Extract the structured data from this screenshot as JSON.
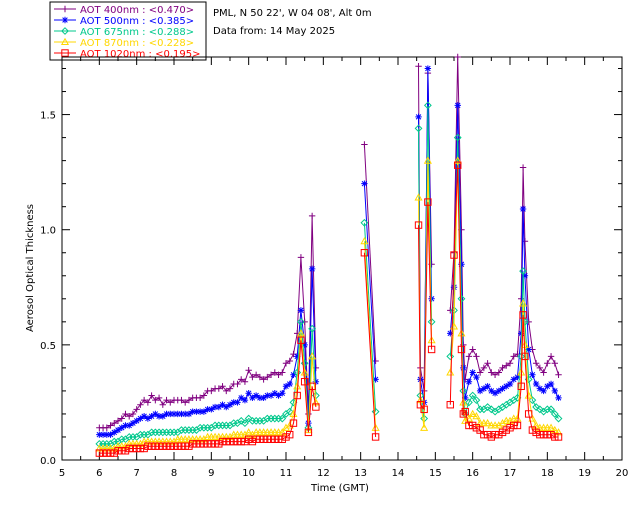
{
  "header": {
    "location": "PML, N 50 22', W 04 08', Alt 0m",
    "date_line": "Data from: 14 May 2025"
  },
  "chart_data": {
    "type": "line",
    "xlabel": "Time (GMT)",
    "ylabel": "Aerosol Optical Thickness",
    "xlim": [
      5,
      20
    ],
    "ylim": [
      0,
      1.75
    ],
    "xticks": [
      "5",
      "6",
      "7",
      "8",
      "9",
      "10",
      "11",
      "12",
      "13",
      "14",
      "15",
      "16",
      "17",
      "18",
      "19",
      "20"
    ],
    "yticks": [
      "0.0",
      "0.5",
      "1.0",
      "1.5"
    ],
    "legend_position": "top-left, outside plot",
    "series": [
      {
        "name": "AOT 400nm",
        "mean": "<0.470>",
        "legend": "AOT  400nm : <0.470>",
        "color": "#800080",
        "marker": "plus",
        "x": [
          6.0,
          6.1,
          6.2,
          6.3,
          6.4,
          6.5,
          6.6,
          6.7,
          6.8,
          6.9,
          7.0,
          7.1,
          7.2,
          7.3,
          7.4,
          7.5,
          7.6,
          7.7,
          7.8,
          7.9,
          8.0,
          8.1,
          8.2,
          8.3,
          8.4,
          8.5,
          8.6,
          8.7,
          8.8,
          8.9,
          9.0,
          9.1,
          9.2,
          9.3,
          9.4,
          9.5,
          9.6,
          9.7,
          9.8,
          9.9,
          10.0,
          10.1,
          10.2,
          10.3,
          10.4,
          10.5,
          10.6,
          10.7,
          10.8,
          10.9,
          11.0,
          11.1,
          11.2,
          11.3,
          11.4,
          11.5,
          11.6,
          11.7,
          11.8,
          null,
          13.1,
          13.4,
          null,
          14.55,
          14.6,
          14.7,
          14.8,
          14.9,
          null,
          15.4,
          15.5,
          15.6,
          15.7,
          15.75,
          15.8,
          15.9,
          16.0,
          16.1,
          16.2,
          16.3,
          16.4,
          16.5,
          16.6,
          16.7,
          16.8,
          16.9,
          17.0,
          17.1,
          17.2,
          17.3,
          17.35,
          17.4,
          17.5,
          17.6,
          17.7,
          17.8,
          17.9,
          18.0,
          18.1,
          18.2,
          18.3
        ],
        "y": [
          0.14,
          0.14,
          0.14,
          0.15,
          0.16,
          0.17,
          0.18,
          0.2,
          0.19,
          0.2,
          0.22,
          0.24,
          0.26,
          0.25,
          0.28,
          0.26,
          0.27,
          0.24,
          0.26,
          0.25,
          0.26,
          0.26,
          0.26,
          0.25,
          0.26,
          0.27,
          0.27,
          0.27,
          0.28,
          0.3,
          0.3,
          0.31,
          0.31,
          0.32,
          0.3,
          0.31,
          0.33,
          0.33,
          0.35,
          0.34,
          0.39,
          0.36,
          0.37,
          0.36,
          0.35,
          0.36,
          0.37,
          0.38,
          0.37,
          0.38,
          0.42,
          0.43,
          0.46,
          0.55,
          0.88,
          0.6,
          0.2,
          1.06,
          0.4,
          null,
          1.37,
          0.43,
          null,
          1.71,
          0.4,
          0.3,
          1.68,
          0.85,
          null,
          0.65,
          0.9,
          1.75,
          1.0,
          0.5,
          0.35,
          0.45,
          0.48,
          0.45,
          0.38,
          0.4,
          0.42,
          0.38,
          0.37,
          0.38,
          0.4,
          0.41,
          0.42,
          0.45,
          0.46,
          0.7,
          1.27,
          0.95,
          0.6,
          0.48,
          0.42,
          0.4,
          0.38,
          0.42,
          0.45,
          0.42,
          0.37
        ]
      },
      {
        "name": "AOT 500nm",
        "mean": "<0.385>",
        "legend": "AOT  500nm : <0.385>",
        "color": "#0000ff",
        "marker": "asterisk",
        "x": [
          6.0,
          6.1,
          6.2,
          6.3,
          6.4,
          6.5,
          6.6,
          6.7,
          6.8,
          6.9,
          7.0,
          7.1,
          7.2,
          7.3,
          7.4,
          7.5,
          7.6,
          7.7,
          7.8,
          7.9,
          8.0,
          8.1,
          8.2,
          8.3,
          8.4,
          8.5,
          8.6,
          8.7,
          8.8,
          8.9,
          9.0,
          9.1,
          9.2,
          9.3,
          9.4,
          9.5,
          9.6,
          9.7,
          9.8,
          9.9,
          10.0,
          10.1,
          10.2,
          10.3,
          10.4,
          10.5,
          10.6,
          10.7,
          10.8,
          10.9,
          11.0,
          11.1,
          11.2,
          11.3,
          11.4,
          11.5,
          11.6,
          11.7,
          11.8,
          null,
          13.1,
          13.4,
          null,
          14.55,
          14.6,
          14.7,
          14.8,
          14.9,
          null,
          15.4,
          15.5,
          15.6,
          15.7,
          15.75,
          15.8,
          15.9,
          16.0,
          16.1,
          16.2,
          16.3,
          16.4,
          16.5,
          16.6,
          16.7,
          16.8,
          16.9,
          17.0,
          17.1,
          17.2,
          17.3,
          17.35,
          17.4,
          17.5,
          17.6,
          17.7,
          17.8,
          17.9,
          18.0,
          18.1,
          18.2,
          18.3
        ],
        "y": [
          0.11,
          0.11,
          0.11,
          0.11,
          0.12,
          0.13,
          0.14,
          0.15,
          0.15,
          0.16,
          0.17,
          0.18,
          0.19,
          0.18,
          0.19,
          0.2,
          0.19,
          0.19,
          0.2,
          0.2,
          0.2,
          0.2,
          0.2,
          0.2,
          0.2,
          0.21,
          0.21,
          0.21,
          0.21,
          0.22,
          0.22,
          0.23,
          0.23,
          0.24,
          0.23,
          0.24,
          0.25,
          0.25,
          0.27,
          0.26,
          0.29,
          0.27,
          0.28,
          0.27,
          0.27,
          0.28,
          0.28,
          0.29,
          0.28,
          0.29,
          0.32,
          0.33,
          0.37,
          0.45,
          0.65,
          0.5,
          0.16,
          0.83,
          0.34,
          null,
          1.2,
          0.35,
          null,
          1.49,
          0.35,
          0.25,
          1.7,
          0.7,
          null,
          0.55,
          0.75,
          1.54,
          0.85,
          0.4,
          0.27,
          0.34,
          0.38,
          0.36,
          0.3,
          0.31,
          0.32,
          0.3,
          0.29,
          0.3,
          0.31,
          0.32,
          0.33,
          0.35,
          0.36,
          0.55,
          1.09,
          0.8,
          0.48,
          0.37,
          0.33,
          0.31,
          0.3,
          0.32,
          0.33,
          0.3,
          0.27
        ]
      },
      {
        "name": "AOT 675nm",
        "mean": "<0.288>",
        "legend": "AOT  675nm : <0.288>",
        "color": "#00c88c",
        "marker": "diamond",
        "x": [
          6.0,
          6.1,
          6.2,
          6.3,
          6.4,
          6.5,
          6.6,
          6.7,
          6.8,
          6.9,
          7.0,
          7.1,
          7.2,
          7.3,
          7.4,
          7.5,
          7.6,
          7.7,
          7.8,
          7.9,
          8.0,
          8.1,
          8.2,
          8.3,
          8.4,
          8.5,
          8.6,
          8.7,
          8.8,
          8.9,
          9.0,
          9.1,
          9.2,
          9.3,
          9.4,
          9.5,
          9.6,
          9.7,
          9.8,
          9.9,
          10.0,
          10.1,
          10.2,
          10.3,
          10.4,
          10.5,
          10.6,
          10.7,
          10.8,
          10.9,
          11.0,
          11.1,
          11.2,
          11.3,
          11.4,
          11.5,
          11.6,
          11.7,
          11.8,
          null,
          13.1,
          13.4,
          null,
          14.55,
          14.6,
          14.7,
          14.8,
          14.9,
          null,
          15.4,
          15.5,
          15.6,
          15.7,
          15.75,
          15.8,
          15.9,
          16.0,
          16.1,
          16.2,
          16.3,
          16.4,
          16.5,
          16.6,
          16.7,
          16.8,
          16.9,
          17.0,
          17.1,
          17.2,
          17.3,
          17.35,
          17.4,
          17.5,
          17.6,
          17.7,
          17.8,
          17.9,
          18.0,
          18.1,
          18.2,
          18.3
        ],
        "y": [
          0.07,
          0.07,
          0.07,
          0.07,
          0.08,
          0.08,
          0.09,
          0.09,
          0.1,
          0.1,
          0.1,
          0.11,
          0.11,
          0.11,
          0.12,
          0.12,
          0.12,
          0.12,
          0.12,
          0.12,
          0.12,
          0.12,
          0.13,
          0.13,
          0.13,
          0.13,
          0.13,
          0.14,
          0.14,
          0.14,
          0.14,
          0.15,
          0.15,
          0.15,
          0.15,
          0.15,
          0.16,
          0.16,
          0.17,
          0.16,
          0.18,
          0.17,
          0.17,
          0.17,
          0.17,
          0.18,
          0.18,
          0.18,
          0.18,
          0.18,
          0.2,
          0.21,
          0.25,
          0.38,
          0.6,
          0.42,
          0.14,
          0.57,
          0.28,
          null,
          1.03,
          0.21,
          null,
          1.44,
          0.28,
          0.18,
          1.54,
          0.6,
          null,
          0.45,
          0.65,
          1.4,
          0.7,
          0.3,
          0.2,
          0.25,
          0.28,
          0.26,
          0.22,
          0.22,
          0.23,
          0.22,
          0.21,
          0.22,
          0.23,
          0.24,
          0.25,
          0.26,
          0.27,
          0.45,
          0.82,
          0.6,
          0.35,
          0.26,
          0.23,
          0.22,
          0.21,
          0.22,
          0.22,
          0.2,
          0.18
        ]
      },
      {
        "name": "AOT 870nm",
        "mean": "<0.228>",
        "legend": "AOT  870nm : <0.228>",
        "color": "#ffd700",
        "marker": "triangle",
        "x": [
          6.0,
          6.1,
          6.2,
          6.3,
          6.4,
          6.5,
          6.6,
          6.7,
          6.8,
          6.9,
          7.0,
          7.1,
          7.2,
          7.3,
          7.4,
          7.5,
          7.6,
          7.7,
          7.8,
          7.9,
          8.0,
          8.1,
          8.2,
          8.3,
          8.4,
          8.5,
          8.6,
          8.7,
          8.8,
          8.9,
          9.0,
          9.1,
          9.2,
          9.3,
          9.4,
          9.5,
          9.6,
          9.7,
          9.8,
          9.9,
          10.0,
          10.1,
          10.2,
          10.3,
          10.4,
          10.5,
          10.6,
          10.7,
          10.8,
          10.9,
          11.0,
          11.1,
          11.2,
          11.3,
          11.4,
          11.5,
          11.6,
          11.7,
          11.8,
          null,
          13.1,
          13.4,
          null,
          14.55,
          14.6,
          14.7,
          14.8,
          14.9,
          null,
          15.4,
          15.5,
          15.6,
          15.7,
          15.75,
          15.8,
          15.9,
          16.0,
          16.1,
          16.2,
          16.3,
          16.4,
          16.5,
          16.6,
          16.7,
          16.8,
          16.9,
          17.0,
          17.1,
          17.2,
          17.3,
          17.35,
          17.4,
          17.5,
          17.6,
          17.7,
          17.8,
          17.9,
          18.0,
          18.1,
          18.2,
          18.3
        ],
        "y": [
          0.05,
          0.05,
          0.05,
          0.05,
          0.05,
          0.06,
          0.06,
          0.06,
          0.07,
          0.07,
          0.07,
          0.07,
          0.08,
          0.08,
          0.08,
          0.08,
          0.08,
          0.08,
          0.08,
          0.08,
          0.08,
          0.09,
          0.09,
          0.09,
          0.09,
          0.09,
          0.09,
          0.09,
          0.09,
          0.1,
          0.1,
          0.1,
          0.1,
          0.1,
          0.1,
          0.1,
          0.11,
          0.11,
          0.11,
          0.11,
          0.12,
          0.11,
          0.12,
          0.12,
          0.12,
          0.12,
          0.12,
          0.12,
          0.12,
          0.12,
          0.14,
          0.15,
          0.2,
          0.32,
          0.55,
          0.38,
          0.13,
          0.45,
          0.25,
          null,
          0.95,
          0.14,
          null,
          1.14,
          0.26,
          0.14,
          1.3,
          0.52,
          null,
          0.38,
          0.58,
          1.3,
          0.55,
          0.25,
          0.17,
          0.18,
          0.2,
          0.19,
          0.16,
          0.16,
          0.16,
          0.15,
          0.15,
          0.15,
          0.16,
          0.17,
          0.17,
          0.18,
          0.18,
          0.38,
          0.68,
          0.5,
          0.28,
          0.18,
          0.15,
          0.14,
          0.14,
          0.14,
          0.14,
          0.13,
          0.12
        ]
      },
      {
        "name": "AOT 1020nm",
        "mean": "<0.195>",
        "legend": "AOT 1020nm : <0.195>",
        "color": "#ff0000",
        "marker": "square",
        "x": [
          6.0,
          6.1,
          6.2,
          6.3,
          6.4,
          6.5,
          6.6,
          6.7,
          6.8,
          6.9,
          7.0,
          7.1,
          7.2,
          7.3,
          7.4,
          7.5,
          7.6,
          7.7,
          7.8,
          7.9,
          8.0,
          8.1,
          8.2,
          8.3,
          8.4,
          8.5,
          8.6,
          8.7,
          8.8,
          8.9,
          9.0,
          9.1,
          9.2,
          9.3,
          9.4,
          9.5,
          9.6,
          9.7,
          9.8,
          9.9,
          10.0,
          10.1,
          10.2,
          10.3,
          10.4,
          10.5,
          10.6,
          10.7,
          10.8,
          10.9,
          11.0,
          11.1,
          11.2,
          11.3,
          11.4,
          11.5,
          11.6,
          11.7,
          11.8,
          null,
          13.1,
          13.4,
          null,
          14.55,
          14.6,
          14.7,
          14.8,
          14.9,
          null,
          15.4,
          15.5,
          15.6,
          15.7,
          15.75,
          15.8,
          15.9,
          16.0,
          16.1,
          16.2,
          16.3,
          16.4,
          16.5,
          16.6,
          16.7,
          16.8,
          16.9,
          17.0,
          17.1,
          17.2,
          17.3,
          17.35,
          17.4,
          17.5,
          17.6,
          17.7,
          17.8,
          17.9,
          18.0,
          18.1,
          18.2,
          18.3
        ],
        "y": [
          0.03,
          0.03,
          0.03,
          0.03,
          0.03,
          0.04,
          0.04,
          0.04,
          0.05,
          0.05,
          0.05,
          0.05,
          0.05,
          0.06,
          0.06,
          0.06,
          0.06,
          0.06,
          0.06,
          0.06,
          0.06,
          0.06,
          0.06,
          0.06,
          0.06,
          0.07,
          0.07,
          0.07,
          0.07,
          0.07,
          0.07,
          0.07,
          0.07,
          0.08,
          0.08,
          0.08,
          0.08,
          0.08,
          0.08,
          0.08,
          0.09,
          0.08,
          0.09,
          0.09,
          0.09,
          0.09,
          0.09,
          0.09,
          0.09,
          0.09,
          0.1,
          0.11,
          0.16,
          0.28,
          0.52,
          0.34,
          0.12,
          0.32,
          0.23,
          null,
          0.9,
          0.1,
          null,
          1.02,
          0.24,
          0.22,
          1.12,
          0.48,
          null,
          0.24,
          0.89,
          1.28,
          0.48,
          0.2,
          0.21,
          0.15,
          0.15,
          0.14,
          0.13,
          0.11,
          0.11,
          0.1,
          0.11,
          0.11,
          0.12,
          0.13,
          0.14,
          0.15,
          0.15,
          0.32,
          0.63,
          0.45,
          0.2,
          0.13,
          0.12,
          0.11,
          0.11,
          0.11,
          0.11,
          0.1,
          0.1
        ]
      }
    ]
  }
}
